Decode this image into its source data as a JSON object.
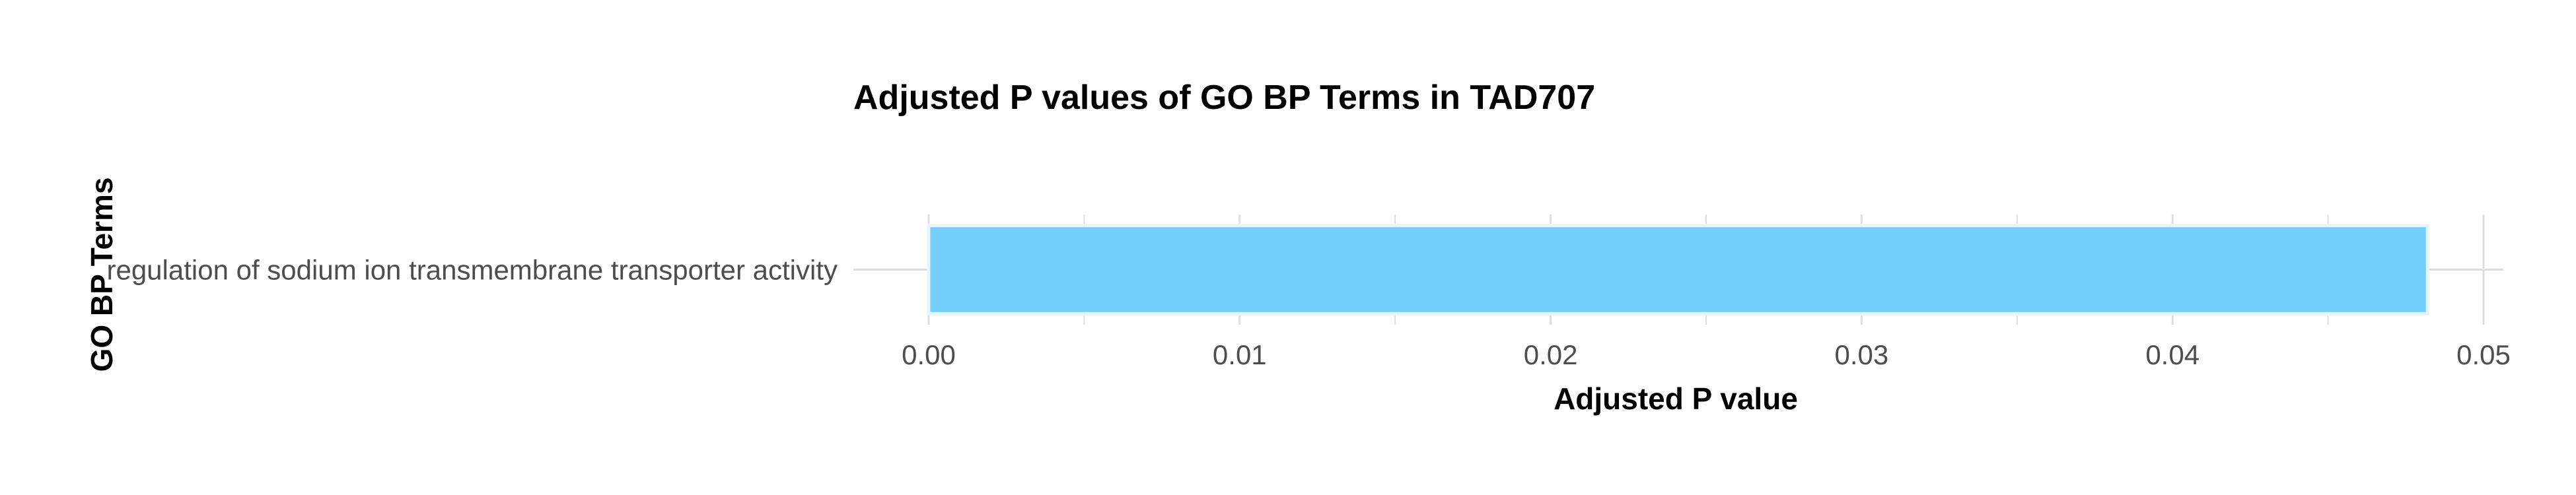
{
  "chart_data": {
    "type": "bar",
    "orientation": "horizontal",
    "title": "Adjusted P values of GO BP Terms in TAD707",
    "xlabel": "Adjusted P value",
    "ylabel": "GO BP Terms",
    "categories": [
      "regulation of sodium ion transmembrane transporter activity"
    ],
    "values": [
      0.0482
    ],
    "xlim": [
      0,
      0.05
    ],
    "xticks": [
      "0.00",
      "0.01",
      "0.02",
      "0.03",
      "0.04",
      "0.05"
    ],
    "grid": true,
    "legend": "none",
    "bar_color": "#75cffc",
    "bar_outline_color": "#e8f4fb",
    "grid_color": "#dedede"
  }
}
